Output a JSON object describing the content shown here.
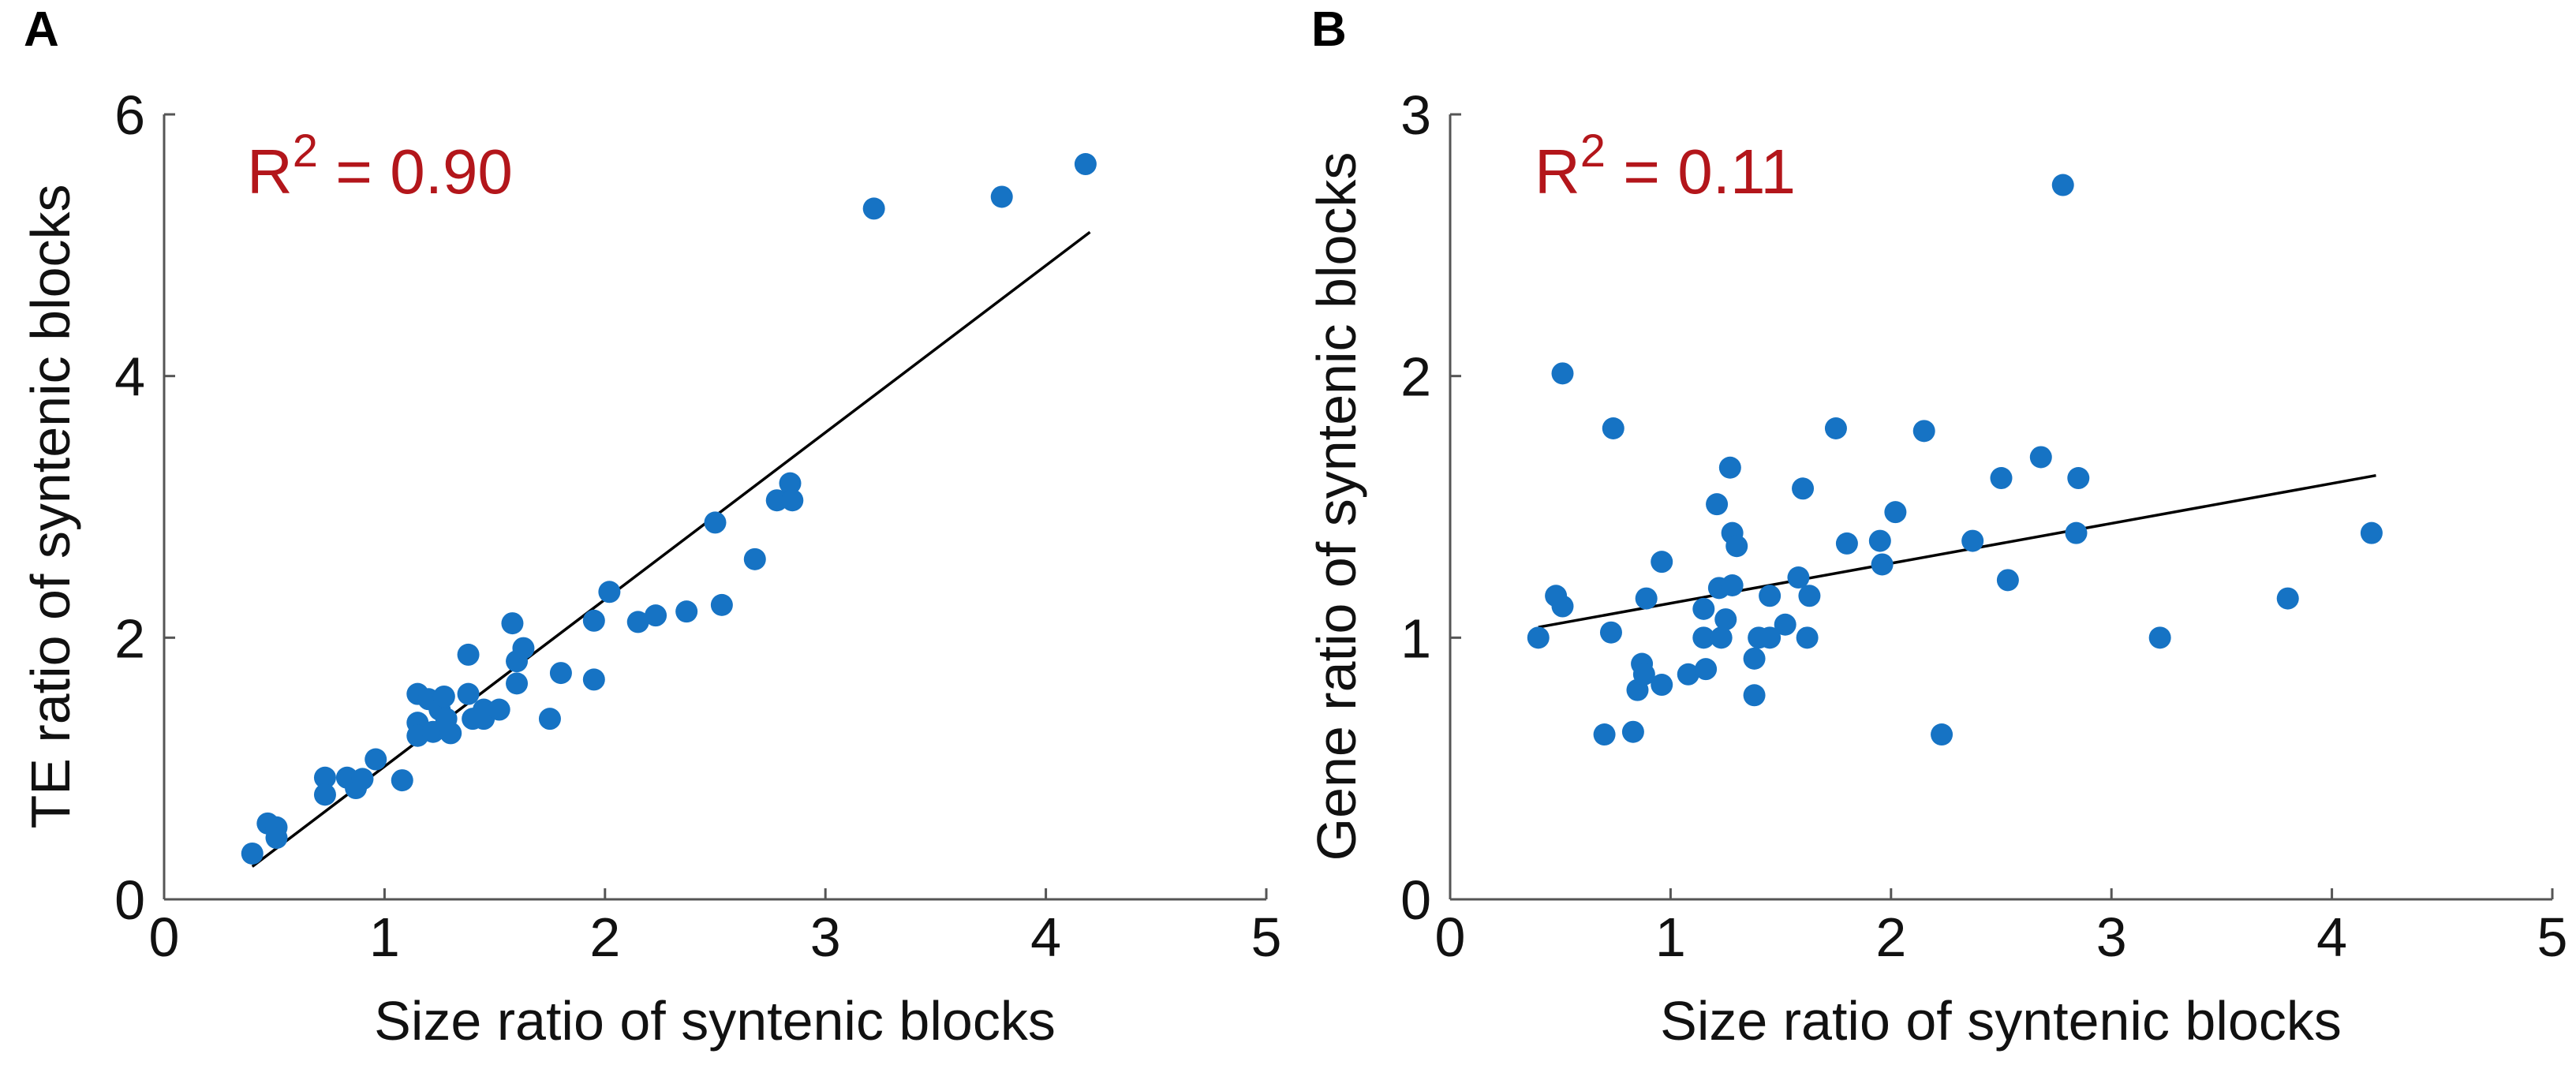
{
  "panel_labels": [
    "A",
    "B"
  ],
  "colors": {
    "point": "#1673c4",
    "annotation": "#b3161b",
    "fit": "#000000"
  },
  "chart_data": [
    {
      "type": "scatter",
      "panel": "A",
      "xlabel": "Size ratio of syntenic blocks",
      "ylabel": "TE ratio of syntenic blocks",
      "xlim": [
        0,
        5
      ],
      "ylim": [
        0,
        6
      ],
      "xticks": [
        0,
        1,
        2,
        3,
        4,
        5
      ],
      "yticks": [
        0,
        2,
        4,
        6
      ],
      "annotation": {
        "prefix": "R",
        "superscript": "2",
        "suffix": " = 0.90"
      },
      "fit": {
        "x": [
          0.4,
          4.2
        ],
        "y": [
          0.25,
          5.1
        ]
      },
      "points": [
        [
          0.4,
          0.35
        ],
        [
          0.47,
          0.58
        ],
        [
          0.51,
          0.55
        ],
        [
          0.51,
          0.47
        ],
        [
          0.73,
          0.93
        ],
        [
          0.73,
          0.8
        ],
        [
          0.83,
          0.93
        ],
        [
          0.87,
          0.85
        ],
        [
          0.9,
          0.92
        ],
        [
          0.96,
          1.07
        ],
        [
          1.08,
          0.91
        ],
        [
          1.15,
          1.57
        ],
        [
          1.15,
          1.35
        ],
        [
          1.15,
          1.25
        ],
        [
          1.2,
          1.53
        ],
        [
          1.22,
          1.28
        ],
        [
          1.25,
          1.45
        ],
        [
          1.27,
          1.55
        ],
        [
          1.28,
          1.38
        ],
        [
          1.3,
          1.27
        ],
        [
          1.38,
          1.87
        ],
        [
          1.38,
          1.57
        ],
        [
          1.4,
          1.38
        ],
        [
          1.45,
          1.45
        ],
        [
          1.45,
          1.38
        ],
        [
          1.52,
          1.45
        ],
        [
          1.58,
          2.11
        ],
        [
          1.6,
          1.82
        ],
        [
          1.6,
          1.65
        ],
        [
          1.63,
          1.92
        ],
        [
          1.75,
          1.38
        ],
        [
          1.8,
          1.73
        ],
        [
          1.95,
          2.13
        ],
        [
          1.95,
          1.68
        ],
        [
          2.02,
          2.35
        ],
        [
          2.15,
          2.12
        ],
        [
          2.23,
          2.17
        ],
        [
          2.37,
          2.2
        ],
        [
          2.5,
          2.88
        ],
        [
          2.53,
          2.25
        ],
        [
          2.68,
          2.6
        ],
        [
          2.78,
          3.05
        ],
        [
          2.84,
          3.18
        ],
        [
          2.85,
          3.05
        ],
        [
          3.22,
          5.28
        ],
        [
          3.8,
          5.37
        ],
        [
          4.18,
          5.62
        ]
      ]
    },
    {
      "type": "scatter",
      "panel": "B",
      "xlabel": "Size ratio of syntenic blocks",
      "ylabel": "Gene ratio of syntenic blocks",
      "xlim": [
        0,
        5
      ],
      "ylim": [
        0,
        3
      ],
      "xticks": [
        0,
        1,
        2,
        3,
        4,
        5
      ],
      "yticks": [
        0,
        1,
        2,
        3
      ],
      "annotation": {
        "prefix": "R",
        "superscript": "2",
        "suffix": " = 0.11"
      },
      "fit": {
        "x": [
          0.4,
          4.2
        ],
        "y": [
          1.04,
          1.62
        ]
      },
      "points": [
        [
          0.4,
          1.0
        ],
        [
          0.48,
          1.16
        ],
        [
          0.51,
          1.12
        ],
        [
          0.51,
          2.01
        ],
        [
          0.7,
          0.63
        ],
        [
          0.73,
          1.02
        ],
        [
          0.74,
          1.8
        ],
        [
          0.83,
          0.64
        ],
        [
          0.85,
          0.8
        ],
        [
          0.87,
          0.9
        ],
        [
          0.88,
          0.86
        ],
        [
          0.89,
          1.15
        ],
        [
          0.96,
          1.29
        ],
        [
          0.96,
          0.82
        ],
        [
          1.08,
          0.86
        ],
        [
          1.15,
          1.11
        ],
        [
          1.15,
          1.0
        ],
        [
          1.16,
          0.88
        ],
        [
          1.21,
          1.51
        ],
        [
          1.22,
          1.19
        ],
        [
          1.23,
          1.0
        ],
        [
          1.25,
          1.07
        ],
        [
          1.27,
          1.65
        ],
        [
          1.28,
          1.4
        ],
        [
          1.28,
          1.2
        ],
        [
          1.3,
          1.35
        ],
        [
          1.38,
          0.92
        ],
        [
          1.38,
          0.78
        ],
        [
          1.4,
          1.0
        ],
        [
          1.45,
          1.0
        ],
        [
          1.45,
          1.16
        ],
        [
          1.52,
          1.05
        ],
        [
          1.58,
          1.23
        ],
        [
          1.6,
          1.57
        ],
        [
          1.62,
          1.0
        ],
        [
          1.63,
          1.16
        ],
        [
          1.75,
          1.8
        ],
        [
          1.8,
          1.36
        ],
        [
          1.95,
          1.37
        ],
        [
          1.96,
          1.28
        ],
        [
          2.02,
          1.48
        ],
        [
          2.15,
          1.79
        ],
        [
          2.23,
          0.63
        ],
        [
          2.37,
          1.37
        ],
        [
          2.5,
          1.61
        ],
        [
          2.53,
          1.22
        ],
        [
          2.68,
          1.69
        ],
        [
          2.78,
          2.73
        ],
        [
          2.84,
          1.4
        ],
        [
          2.85,
          1.61
        ],
        [
          3.22,
          1.0
        ],
        [
          3.8,
          1.15
        ],
        [
          4.18,
          1.4
        ]
      ]
    }
  ]
}
